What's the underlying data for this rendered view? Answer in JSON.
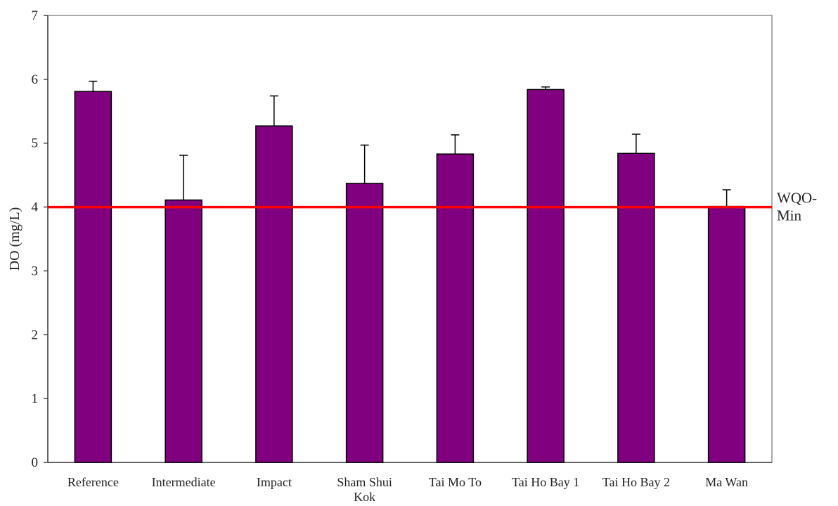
{
  "chart_data": {
    "type": "bar",
    "title": "",
    "xlabel": "",
    "ylabel": "DO (mg/L)",
    "ylim": [
      0,
      7
    ],
    "yticks": [
      0,
      1,
      2,
      3,
      4,
      5,
      6,
      7
    ],
    "grid": false,
    "legend": "none",
    "categories": [
      [
        "Reference"
      ],
      [
        "Intermediate"
      ],
      [
        "Impact"
      ],
      [
        "Sham Shui",
        "Kok"
      ],
      [
        "Tai Mo To"
      ],
      [
        "Tai Ho Bay 1"
      ],
      [
        "Tai Ho Bay 2"
      ],
      [
        "Ma Wan"
      ]
    ],
    "values": [
      5.81,
      4.11,
      5.27,
      4.37,
      4.83,
      5.84,
      4.84,
      4.01
    ],
    "error_upper": [
      0.16,
      0.7,
      0.47,
      0.6,
      0.3,
      0.04,
      0.3,
      0.26
    ],
    "bar_color": "#800080",
    "reference_line": {
      "value": 4,
      "label": [
        "WQO-",
        "Min"
      ],
      "color": "#ff0000"
    }
  }
}
